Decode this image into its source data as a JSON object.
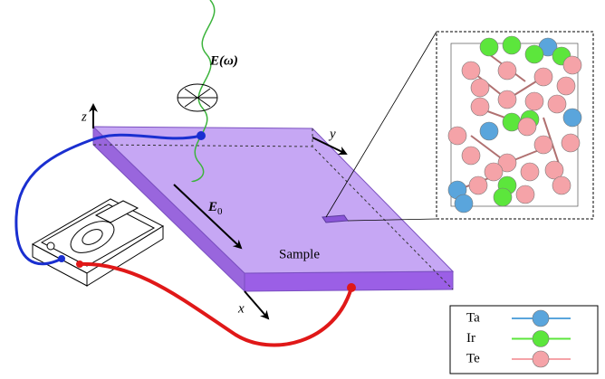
{
  "axes": {
    "x": "x",
    "y": "y",
    "z": "z"
  },
  "field": {
    "label": "E(ω)"
  },
  "field_static": {
    "symbol": "E",
    "subscript": "0"
  },
  "sample": {
    "label": "Sample"
  },
  "legend": [
    {
      "name": "Ta",
      "color": "#5aa5dc"
    },
    {
      "name": "Ir",
      "color": "#5ce63c"
    },
    {
      "name": "Te",
      "color": "#f5a3a8"
    }
  ]
}
